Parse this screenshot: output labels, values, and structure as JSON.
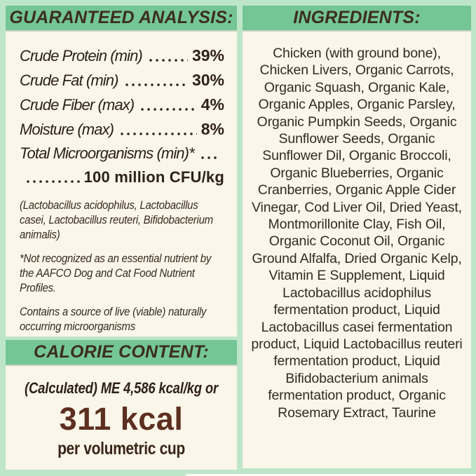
{
  "colors": {
    "background_mint": "#bde6c8",
    "header_band_green": "#74c695",
    "panel_cream": "#faf6e9",
    "text_dark_brown": "#2e2117",
    "kcal_brown": "#5c2f20"
  },
  "guaranteed_analysis": {
    "title": "GUARANTEED ANALYSIS:",
    "rows": [
      {
        "label": "Crude Protein (min)",
        "value": "39%"
      },
      {
        "label": "Crude Fat (min)",
        "value": "30%"
      },
      {
        "label": "Crude Fiber (max)",
        "value": "4%"
      },
      {
        "label": "Moisture (max)",
        "value": "8%"
      }
    ],
    "microorganisms_label": "Total Microorganisms (min)*",
    "microorganisms_value": "100 million CFU/kg",
    "notes": [
      "(Lactobacillus acidophilus, Lactobacillus casei, Lactobacillus reuteri, Bifidobacterium animalis)",
      "*Not recognized as an essential nutrient by the AAFCO Dog and Cat Food Nutrient Profiles.",
      "Contains a source of live (viable) naturally occurring microorganisms"
    ]
  },
  "calorie_content": {
    "title": "CALORIE CONTENT:",
    "calculated_line": "(Calculated) ME 4,586 kcal/kg or",
    "kcal_value": "311 kcal",
    "kcal_unit": "per volumetric cup"
  },
  "ingredients": {
    "title": "INGREDIENTS:",
    "text": "Chicken (with ground bone), Chicken Livers, Organic Carrots, Organic Squash, Organic Kale, Organic Apples, Organic Parsley, Organic Pumpkin Seeds, Organic Sunflower Seeds, Organic Sunflower Dil, Organic Broccoli, Organic Blueberries, Organic Cranberries, Organic Apple Cider Vinegar, Cod Liver Oil, Dried Yeast, Montmorillonite Clay, Fish Oil, Organic Coconut Oil, Organic Ground Alfalfa, Dried Organic Kelp, Vitamin E Supplement, Liquid Lactobacillus acidophilus fermentation product, Liquid Lactobacillus casei fermentation product, Liquid Lactobacillus reuteri fermentation product, Liquid Bifidobacterium animals fermentation product, Organic Rosemary Extract, Taurine"
  }
}
